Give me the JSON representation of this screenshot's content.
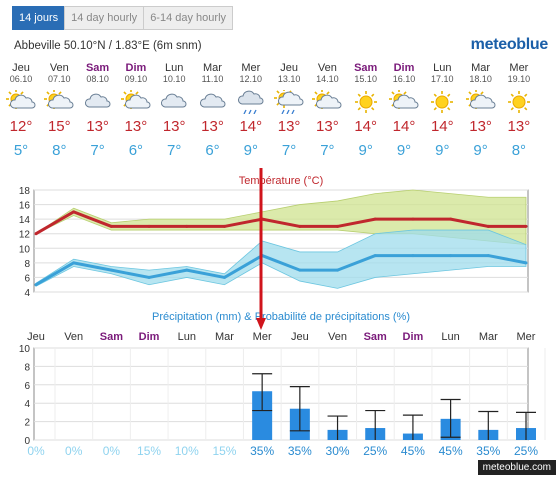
{
  "tabs": [
    {
      "label": "14 jours",
      "active": true
    },
    {
      "label": "14 day hourly",
      "active": false
    },
    {
      "label": "6-14 day hourly",
      "active": false
    }
  ],
  "location": "Abbeville  50.10°N / 1.83°E (6m snm)",
  "brand": "meteoblue",
  "footer": "meteoblue.com",
  "days": [
    {
      "name": "Jeu",
      "date": "06.10",
      "weekend": false,
      "icon": "sun-cloud",
      "tmax": "12°",
      "tmin": "5°"
    },
    {
      "name": "Ven",
      "date": "07.10",
      "weekend": false,
      "icon": "sun-cloud",
      "tmax": "15°",
      "tmin": "8°"
    },
    {
      "name": "Sam",
      "date": "08.10",
      "weekend": true,
      "icon": "cloud",
      "tmax": "13°",
      "tmin": "7°"
    },
    {
      "name": "Dim",
      "date": "09.10",
      "weekend": true,
      "icon": "sun-cloud",
      "tmax": "13°",
      "tmin": "6°"
    },
    {
      "name": "Lun",
      "date": "10.10",
      "weekend": false,
      "icon": "cloud",
      "tmax": "13°",
      "tmin": "7°"
    },
    {
      "name": "Mar",
      "date": "11.10",
      "weekend": false,
      "icon": "cloud",
      "tmax": "13°",
      "tmin": "6°"
    },
    {
      "name": "Mer",
      "date": "12.10",
      "weekend": false,
      "icon": "rain-cloud",
      "tmax": "14°",
      "tmin": "9°"
    },
    {
      "name": "Jeu",
      "date": "13.10",
      "weekend": false,
      "icon": "sun-rain",
      "tmax": "13°",
      "tmin": "7°"
    },
    {
      "name": "Ven",
      "date": "14.10",
      "weekend": false,
      "icon": "sun-cloud",
      "tmax": "13°",
      "tmin": "7°"
    },
    {
      "name": "Sam",
      "date": "15.10",
      "weekend": true,
      "icon": "sun",
      "tmax": "14°",
      "tmin": "9°"
    },
    {
      "name": "Dim",
      "date": "16.10",
      "weekend": true,
      "icon": "sun-cloud",
      "tmax": "14°",
      "tmin": "9°"
    },
    {
      "name": "Lun",
      "date": "17.10",
      "weekend": false,
      "icon": "sun",
      "tmax": "14°",
      "tmin": "9°"
    },
    {
      "name": "Mar",
      "date": "18.10",
      "weekend": false,
      "icon": "sun-cloud",
      "tmax": "13°",
      "tmin": "9°"
    },
    {
      "name": "Mer",
      "date": "19.10",
      "weekend": false,
      "icon": "sun",
      "tmax": "13°",
      "tmin": "8°"
    }
  ],
  "colors": {
    "max": "#c0272d",
    "min": "#3aa1d8",
    "bar": "#2a8be0",
    "weekend": "#7a1a7a",
    "marker": "#d0141c",
    "prob": "#8fd3ef"
  },
  "chart_data": [
    {
      "type": "line",
      "title": "Température (°C)",
      "ylim": [
        4,
        18
      ],
      "yticks": [
        4,
        6,
        8,
        10,
        12,
        14,
        16,
        18
      ],
      "x": [
        0,
        1,
        2,
        3,
        4,
        5,
        6,
        7,
        8,
        9,
        10,
        11,
        12,
        13
      ],
      "series": [
        {
          "values": [
            12,
            15,
            13,
            13,
            13,
            13,
            14,
            13,
            13,
            14,
            14,
            14,
            13,
            13
          ],
          "band": [
            [
              12,
              12
            ],
            [
              14.5,
              15.5
            ],
            [
              12.5,
              13.5
            ],
            [
              12.5,
              14
            ],
            [
              12.5,
              14
            ],
            [
              12.5,
              14
            ],
            [
              12.5,
              15
            ],
            [
              12.5,
              16
            ],
            [
              12.5,
              16.5
            ],
            [
              12,
              17.5
            ],
            [
              12,
              18
            ],
            [
              11.5,
              17.5
            ],
            [
              11,
              17
            ],
            [
              10.5,
              17
            ]
          ]
        },
        {
          "values": [
            5,
            8,
            7,
            6,
            7,
            6,
            9,
            7,
            7,
            9,
            9,
            9,
            9,
            8
          ],
          "band": [
            [
              4.8,
              5.2
            ],
            [
              7.5,
              8.5
            ],
            [
              6.5,
              7.5
            ],
            [
              5,
              7
            ],
            [
              6,
              7.5
            ],
            [
              5,
              6.5
            ],
            [
              8,
              11
            ],
            [
              5.5,
              9.5
            ],
            [
              4.5,
              9.5
            ],
            [
              6,
              12
            ],
            [
              6.5,
              12.5
            ],
            [
              7,
              12.5
            ],
            [
              7.5,
              12.5
            ],
            [
              7.5,
              10.5
            ]
          ]
        }
      ]
    },
    {
      "type": "bar",
      "title": "Précipitation (mm) & Probabilité de précipitations (%)",
      "ylim": [
        0,
        10
      ],
      "yticks": [
        0,
        2,
        4,
        6,
        8,
        10
      ],
      "categories": [
        "Jeu",
        "Ven",
        "Sam",
        "Dim",
        "Lun",
        "Mar",
        "Mer",
        "Jeu",
        "Ven",
        "Sam",
        "Dim",
        "Lun",
        "Mar",
        "Mer"
      ],
      "values": [
        0,
        0,
        0,
        0,
        0,
        0,
        5.3,
        3.4,
        1.1,
        1.3,
        0.7,
        2.3,
        1.1,
        1.3
      ],
      "error_low": [
        0,
        0,
        0,
        0,
        0,
        0,
        3.2,
        1.0,
        0,
        0,
        0,
        0.3,
        0,
        0
      ],
      "error_high": [
        0,
        0,
        0,
        0,
        0,
        0,
        7.2,
        5.8,
        2.6,
        3.2,
        2.7,
        4.4,
        3.1,
        3.0
      ],
      "probability": [
        "0%",
        "0%",
        "0%",
        "15%",
        "10%",
        "15%",
        "35%",
        "35%",
        "30%",
        "25%",
        "45%",
        "45%",
        "35%",
        "25%"
      ]
    }
  ]
}
